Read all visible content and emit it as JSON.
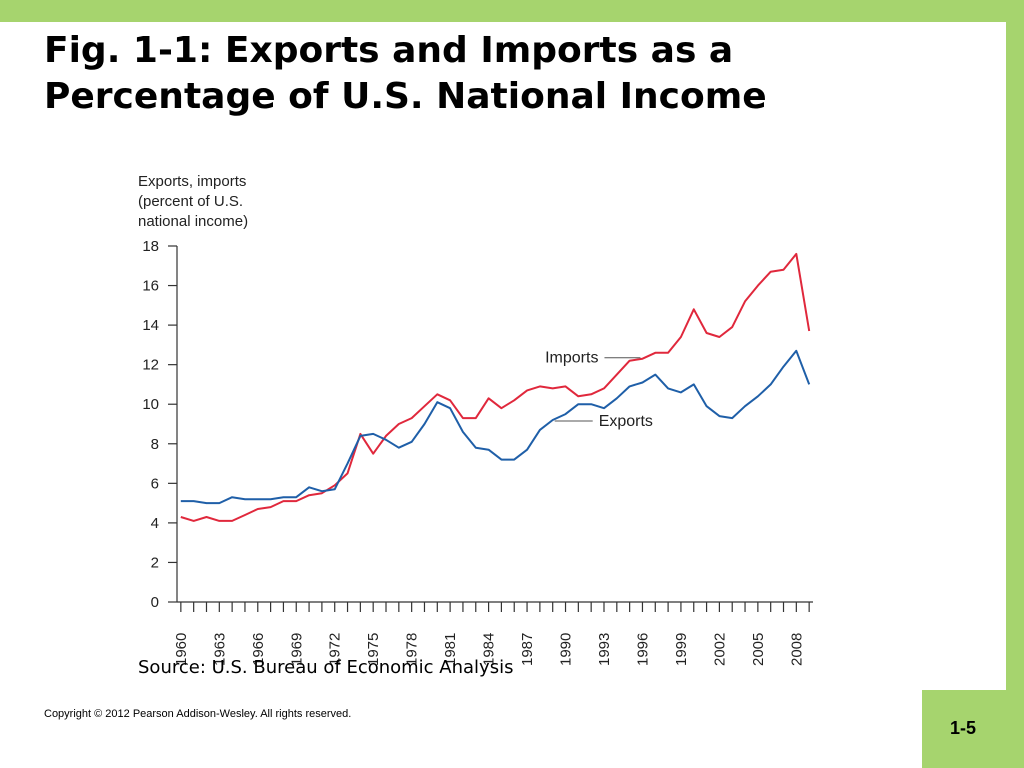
{
  "slide": {
    "title_line1": "Fig. 1-1: Exports and Imports as a",
    "title_line2": "Percentage of U.S. National Income",
    "source": "Source: U.S. Bureau of Economic Analysis",
    "copyright": "Copyright © 2012 Pearson Addison-Wesley. All rights reserved.",
    "page_number": "1-5",
    "colors": {
      "accent": "#a6d46e",
      "imports": "#e0283c",
      "exports": "#1f5fa8"
    }
  },
  "chart_data": {
    "type": "line",
    "ylabel_lines": [
      "Exports, imports",
      "(percent of U.S.",
      "national income)"
    ],
    "ylim": [
      0,
      18
    ],
    "yticks": [
      0,
      2,
      4,
      6,
      8,
      10,
      12,
      14,
      16,
      18
    ],
    "x_tick_labels": [
      "1960",
      "1963",
      "1966",
      "1969",
      "1972",
      "1975",
      "1978",
      "1981",
      "1984",
      "1987",
      "1990",
      "1993",
      "1996",
      "1999",
      "2002",
      "2005",
      "2008"
    ],
    "x": [
      1960,
      1961,
      1962,
      1963,
      1964,
      1965,
      1966,
      1967,
      1968,
      1969,
      1970,
      1971,
      1972,
      1973,
      1974,
      1975,
      1976,
      1977,
      1978,
      1979,
      1980,
      1981,
      1982,
      1983,
      1984,
      1985,
      1986,
      1987,
      1988,
      1989,
      1990,
      1991,
      1992,
      1993,
      1994,
      1995,
      1996,
      1997,
      1998,
      1999,
      2000,
      2001,
      2002,
      2003,
      2004,
      2005,
      2006,
      2007,
      2008,
      2009
    ],
    "series": [
      {
        "name": "Imports",
        "color": "#e0283c",
        "values": [
          4.3,
          4.1,
          4.3,
          4.1,
          4.1,
          4.4,
          4.7,
          4.8,
          5.1,
          5.1,
          5.4,
          5.5,
          5.9,
          6.5,
          8.5,
          7.5,
          8.4,
          9.0,
          9.3,
          9.9,
          10.5,
          10.2,
          9.3,
          9.3,
          10.3,
          9.8,
          10.2,
          10.7,
          10.9,
          10.8,
          10.9,
          10.4,
          10.5,
          10.8,
          11.5,
          12.2,
          12.3,
          12.6,
          12.6,
          13.4,
          14.8,
          13.6,
          13.4,
          13.9,
          15.2,
          16.0,
          16.7,
          16.8,
          17.6,
          13.7
        ]
      },
      {
        "name": "Exports",
        "color": "#1f5fa8",
        "values": [
          5.1,
          5.1,
          5.0,
          5.0,
          5.3,
          5.2,
          5.2,
          5.2,
          5.3,
          5.3,
          5.8,
          5.6,
          5.7,
          7.0,
          8.4,
          8.5,
          8.2,
          7.8,
          8.1,
          9.0,
          10.1,
          9.8,
          8.6,
          7.8,
          7.7,
          7.2,
          7.2,
          7.7,
          8.7,
          9.2,
          9.5,
          10.0,
          10.0,
          9.8,
          10.3,
          10.9,
          11.1,
          11.5,
          10.8,
          10.6,
          11.0,
          9.9,
          9.4,
          9.3,
          9.9,
          10.4,
          11.0,
          11.9,
          12.7,
          11.0
        ]
      }
    ],
    "annotations": [
      {
        "text": "Imports",
        "series": "Imports",
        "anchor_year": 1996,
        "anchor_value": 12.3
      },
      {
        "text": "Exports",
        "series": "Exports",
        "anchor_year": 1989,
        "anchor_value": 9.2
      }
    ]
  }
}
